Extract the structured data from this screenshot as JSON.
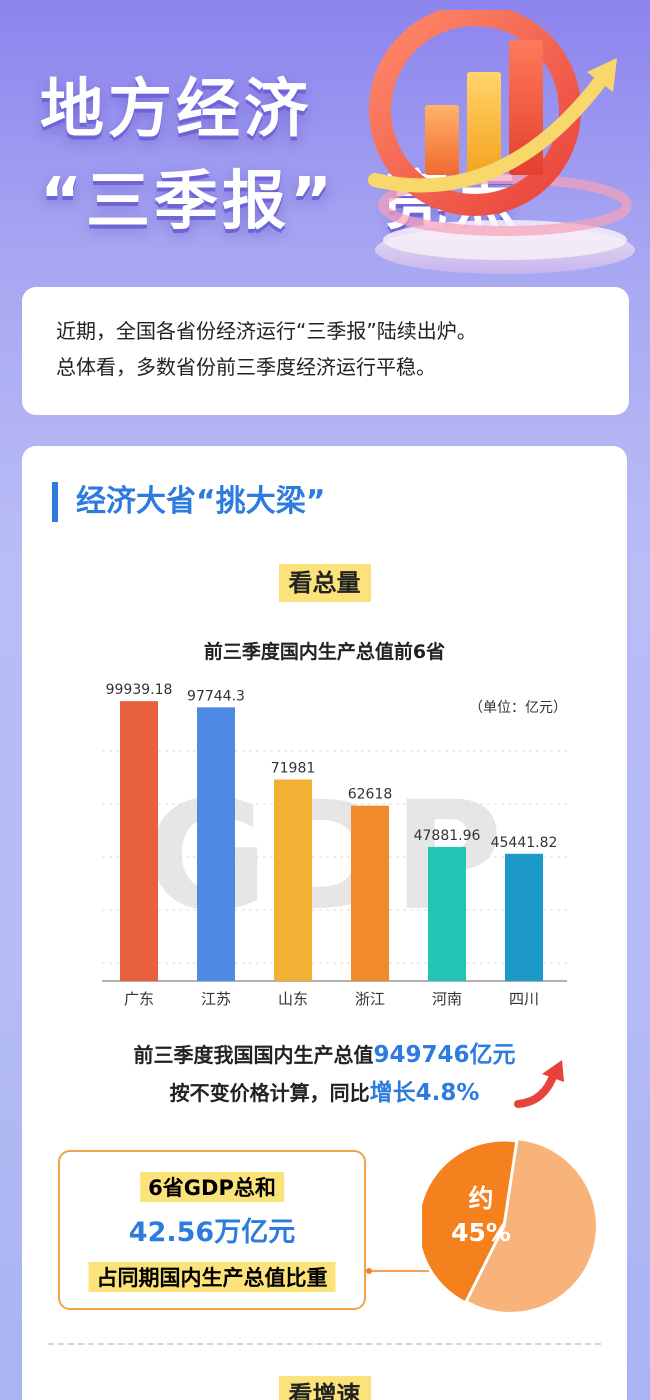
{
  "hero": {
    "title_line1": "地方经济",
    "title_line2": "“三季报”",
    "title_line3": "亮点"
  },
  "intro": {
    "line1": "近期，全国各省份经济运行“三季报”陆续出炉。",
    "line2": "总体看，多数省份前三季度经济运行平稳。"
  },
  "section": {
    "title": "经济大省“挑大梁”",
    "tag_total": "看总量",
    "tag_growth": "看增速"
  },
  "chart_data": {
    "type": "bar",
    "title": "前三季度国内生产总值前6省",
    "unit_label": "（单位：亿元）",
    "watermark": "GDP",
    "categories": [
      "广东",
      "江苏",
      "山东",
      "浙江",
      "河南",
      "四川"
    ],
    "values": [
      99939.18,
      97744.3,
      71981,
      62618,
      47881.96,
      45441.82
    ],
    "value_labels": [
      "99939.18",
      "97744.3",
      "71981",
      "62618",
      "47881.96",
      "45441.82"
    ],
    "colors": [
      "#e8603c",
      "#4d8ae6",
      "#f2b134",
      "#f08a2c",
      "#23c3b6",
      "#1e9ac9"
    ],
    "ylim": [
      0,
      100000
    ],
    "grid": true
  },
  "summary": {
    "line1_prefix": "前三季度我国国内生产总值",
    "line1_value": "949746亿元",
    "line2_prefix": "按不变价格计算，同比",
    "line2_value": "增长4.8%"
  },
  "share": {
    "label1": "6省GDP总和",
    "value": "42.56万亿元",
    "label2": "占同期国内生产总值比重",
    "pie_text1": "约",
    "pie_text2": "45%",
    "pie_percent": 45,
    "pie_color_main": "#f5801e",
    "pie_color_rest": "#f7b37a"
  }
}
